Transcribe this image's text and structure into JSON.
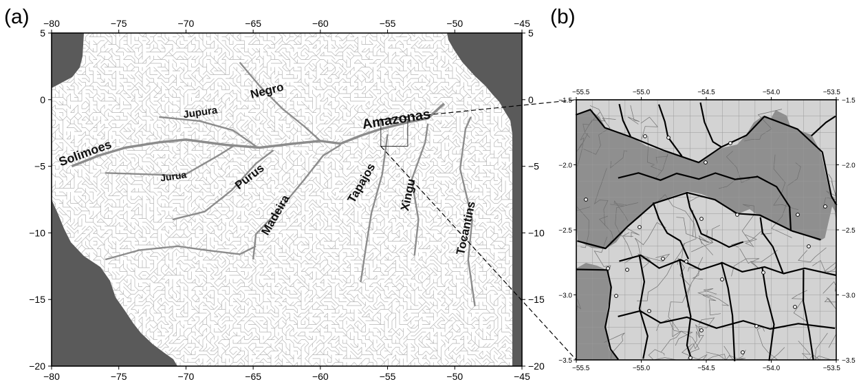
{
  "panel_a": {
    "label": "(a)",
    "x_ticks": [
      "−80",
      "−75",
      "−70",
      "−65",
      "−60",
      "−55",
      "−50",
      "−45"
    ],
    "y_ticks_left": [
      "5",
      "0",
      "−5",
      "−10",
      "−15",
      "−20"
    ],
    "y_ticks_right": [
      "5",
      "0",
      "−5",
      "−10",
      "−15",
      "−20"
    ],
    "x_range": [
      -80,
      -45
    ],
    "y_range": [
      -20,
      5
    ],
    "colors": {
      "outside_domain": "#5a5a5a",
      "network": "#b4b4b4",
      "main_river": "#8c8c8c"
    },
    "rivers": [
      {
        "name": "Solimoes",
        "lon": -77.4,
        "lat": -4.3
      },
      {
        "name": "Jupura",
        "lon": -68.9,
        "lat": -1.2
      },
      {
        "name": "Negro",
        "lon": -63.9,
        "lat": 0.4
      },
      {
        "name": "Amazonas",
        "lon": -54.3,
        "lat": -1.8
      },
      {
        "name": "Jurua",
        "lon": -70.9,
        "lat": -6.0
      },
      {
        "name": "Purus",
        "lon": -65.1,
        "lat": -6.0
      },
      {
        "name": "Madeira",
        "lon": -63.1,
        "lat": -8.8
      },
      {
        "name": "Tapajos",
        "lon": -56.7,
        "lat": -6.4
      },
      {
        "name": "Xingu",
        "lon": -53.2,
        "lat": -7.2
      },
      {
        "name": "Tocantins",
        "lon": -48.9,
        "lat": -9.7
      }
    ],
    "inset_box": {
      "lon": [
        -55.5,
        -53.5
      ],
      "lat": [
        -3.5,
        -1.5
      ]
    }
  },
  "panel_b": {
    "label": "(b)",
    "x_ticks": [
      "−55.5",
      "−55.0",
      "−54.5",
      "−54.0",
      "−53.5"
    ],
    "y_ticks": [
      "−1.5",
      "−2.0",
      "−2.5",
      "−3.0",
      "−3.5"
    ],
    "x_range": [
      -55.5,
      -53.5
    ],
    "y_range": [
      -3.5,
      -1.5
    ],
    "colors": {
      "light_basin": "#d3d3d3",
      "dark_basin": "#8f8f8f",
      "grid": "#9a9a9a"
    }
  }
}
